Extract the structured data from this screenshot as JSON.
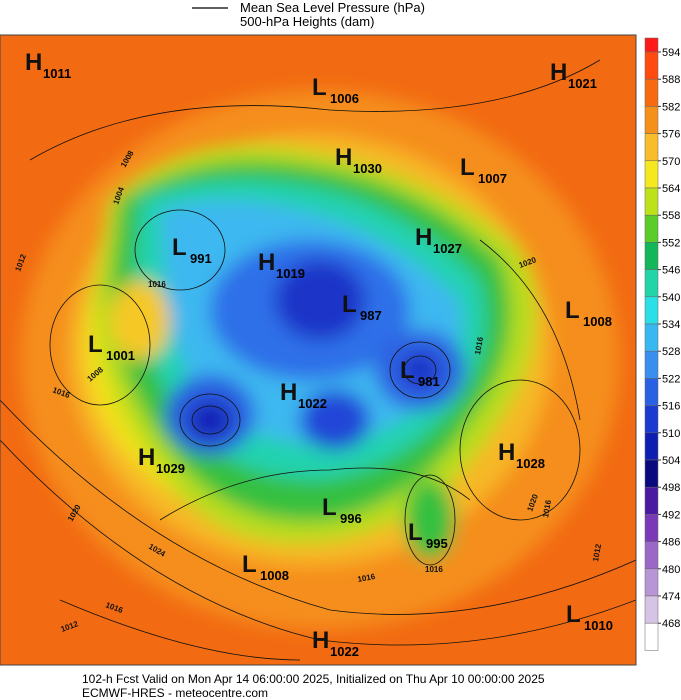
{
  "header": {
    "lines": [
      "Mean Sea Level Pressure (hPa)",
      "500-hPa Heights (dam)"
    ]
  },
  "colorbar": {
    "ticks": [
      594,
      588,
      582,
      576,
      570,
      564,
      558,
      552,
      546,
      540,
      534,
      528,
      522,
      516,
      510,
      504,
      498,
      492,
      486,
      480,
      474,
      468
    ],
    "colors": [
      "#ff1a1a",
      "#ff4a10",
      "#f86a10",
      "#f5901a",
      "#f9bc2a",
      "#f5e820",
      "#bde21a",
      "#5ccc2a",
      "#14b65a",
      "#22d4a8",
      "#2ae0e6",
      "#38b8f0",
      "#3a8ef0",
      "#2a60e4",
      "#1a3ad0",
      "#0e1eb0",
      "#0a0a7e",
      "#4a1aa0",
      "#7a3ab8",
      "#9c68c8",
      "#b896d6",
      "#d6c4e6",
      "#ffffff"
    ]
  },
  "centers": [
    {
      "type": "H",
      "pressure": 1011
    },
    {
      "type": "L",
      "pressure": 1006
    },
    {
      "type": "H",
      "pressure": 1021
    },
    {
      "type": "H",
      "pressure": 1030
    },
    {
      "type": "L",
      "pressure": 1007
    },
    {
      "type": "H",
      "pressure": 1027
    },
    {
      "type": "L",
      "pressure": 991
    },
    {
      "type": "H",
      "pressure": 1019
    },
    {
      "type": "L",
      "pressure": 987
    },
    {
      "type": "L",
      "pressure": 1008
    },
    {
      "type": "L",
      "pressure": 1001
    },
    {
      "type": "L",
      "pressure": 981
    },
    {
      "type": "H",
      "pressure": 1022
    },
    {
      "type": "H",
      "pressure": 1029
    },
    {
      "type": "H",
      "pressure": 1028
    },
    {
      "type": "L",
      "pressure": 996
    },
    {
      "type": "L",
      "pressure": 995
    },
    {
      "type": "L",
      "pressure": 1008
    },
    {
      "type": "L",
      "pressure": 1010
    },
    {
      "type": "H",
      "pressure": 1022
    }
  ],
  "isobar_labels": [
    1008,
    1004,
    1016,
    1016,
    1008,
    1012,
    1020,
    1024,
    1016,
    1012,
    1020,
    1016,
    1012,
    1016,
    1016,
    1020,
    1016
  ],
  "footer": {
    "lines": [
      "102-h Fcst Valid on Mon Apr 14 06:00:00 2025, Initialized on Thu Apr 10 00:00:00 2025",
      "ECMWF-HRES  - meteocentre.com"
    ]
  }
}
